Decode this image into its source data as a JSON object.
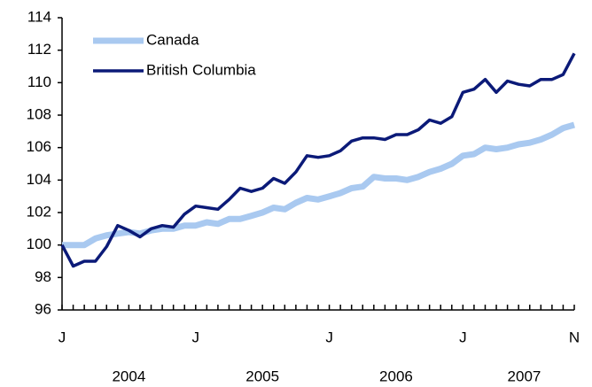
{
  "chart_data": {
    "type": "line",
    "categories": [
      "J",
      null,
      null,
      null,
      null,
      null,
      null,
      null,
      null,
      null,
      null,
      null,
      "J",
      null,
      null,
      null,
      null,
      null,
      null,
      null,
      null,
      null,
      null,
      null,
      "J",
      null,
      null,
      null,
      null,
      null,
      null,
      null,
      null,
      null,
      null,
      null,
      "J",
      null,
      null,
      null,
      null,
      null,
      null,
      null,
      null,
      null,
      "N"
    ],
    "x_group_labels": [
      "2004",
      "2005",
      "2006",
      "2007"
    ],
    "series": [
      {
        "name": "Canada",
        "color": "#a9c9f0",
        "values": [
          100.0,
          100.0,
          100.0,
          100.4,
          100.6,
          100.7,
          100.8,
          100.7,
          100.9,
          101.0,
          101.0,
          101.2,
          101.2,
          101.4,
          101.3,
          101.6,
          101.6,
          101.8,
          102.0,
          102.3,
          102.2,
          102.6,
          102.9,
          102.8,
          103.0,
          103.2,
          103.5,
          103.6,
          104.2,
          104.1,
          104.1,
          104.0,
          104.2,
          104.5,
          104.7,
          105.0,
          105.5,
          105.6,
          106.0,
          105.9,
          106.0,
          106.2,
          106.3,
          106.5,
          106.8,
          107.2,
          107.4
        ]
      },
      {
        "name": "British Columbia",
        "color": "#0b1a78",
        "values": [
          100.0,
          98.7,
          99.0,
          99.0,
          99.9,
          101.2,
          100.9,
          100.5,
          101.0,
          101.2,
          101.1,
          101.9,
          102.4,
          102.3,
          102.2,
          102.8,
          103.5,
          103.3,
          103.5,
          104.1,
          103.8,
          104.5,
          105.5,
          105.4,
          105.5,
          105.8,
          106.4,
          106.6,
          106.6,
          106.5,
          106.8,
          106.8,
          107.1,
          107.7,
          107.5,
          107.9,
          109.4,
          109.6,
          110.2,
          109.4,
          110.1,
          109.9,
          109.8,
          110.2,
          110.2,
          110.5,
          111.8
        ]
      }
    ],
    "ylim": [
      96,
      114
    ],
    "yticks": [
      96,
      98,
      100,
      102,
      104,
      106,
      108,
      110,
      112,
      114
    ],
    "grid": false,
    "legend": "upper-left"
  }
}
